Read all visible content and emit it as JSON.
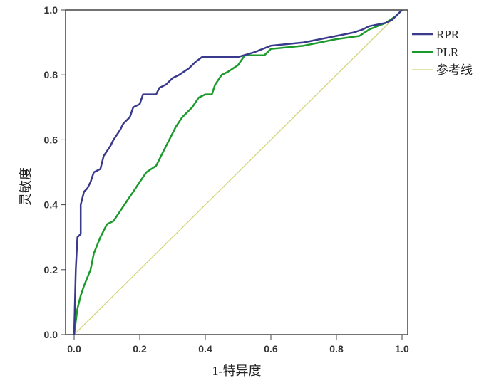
{
  "chart_data": {
    "type": "line",
    "xlabel": "1-特异度",
    "ylabel": "灵敏度",
    "xlim": [
      0,
      1
    ],
    "ylim": [
      0,
      1
    ],
    "xticks": [
      "0.0",
      "0.2",
      "0.4",
      "0.6",
      "0.8",
      "1.0"
    ],
    "yticks": [
      "0.0",
      "0.2",
      "0.4",
      "0.6",
      "0.8",
      "1.0"
    ],
    "grid": false,
    "legend_position": "right",
    "series": [
      {
        "name": "RPR",
        "color": "#3a3a8c",
        "points": [
          [
            0,
            0
          ],
          [
            0.005,
            0.2
          ],
          [
            0.01,
            0.3
          ],
          [
            0.02,
            0.31
          ],
          [
            0.02,
            0.4
          ],
          [
            0.03,
            0.44
          ],
          [
            0.04,
            0.45
          ],
          [
            0.05,
            0.47
          ],
          [
            0.06,
            0.5
          ],
          [
            0.08,
            0.51
          ],
          [
            0.09,
            0.55
          ],
          [
            0.11,
            0.58
          ],
          [
            0.12,
            0.6
          ],
          [
            0.14,
            0.63
          ],
          [
            0.15,
            0.65
          ],
          [
            0.17,
            0.67
          ],
          [
            0.18,
            0.7
          ],
          [
            0.2,
            0.71
          ],
          [
            0.21,
            0.74
          ],
          [
            0.25,
            0.74
          ],
          [
            0.26,
            0.76
          ],
          [
            0.28,
            0.77
          ],
          [
            0.3,
            0.79
          ],
          [
            0.32,
            0.8
          ],
          [
            0.35,
            0.82
          ],
          [
            0.37,
            0.84
          ],
          [
            0.39,
            0.855
          ],
          [
            0.5,
            0.855
          ],
          [
            0.55,
            0.87
          ],
          [
            0.6,
            0.89
          ],
          [
            0.7,
            0.9
          ],
          [
            0.8,
            0.92
          ],
          [
            0.85,
            0.93
          ],
          [
            0.88,
            0.94
          ],
          [
            0.9,
            0.95
          ],
          [
            0.95,
            0.96
          ],
          [
            0.97,
            0.97
          ],
          [
            0.99,
            0.99
          ],
          [
            1,
            1
          ]
        ]
      },
      {
        "name": "PLR",
        "color": "#1a9a2a",
        "points": [
          [
            0,
            0
          ],
          [
            0.01,
            0.08
          ],
          [
            0.02,
            0.12
          ],
          [
            0.03,
            0.15
          ],
          [
            0.05,
            0.2
          ],
          [
            0.06,
            0.25
          ],
          [
            0.08,
            0.3
          ],
          [
            0.1,
            0.34
          ],
          [
            0.12,
            0.35
          ],
          [
            0.14,
            0.38
          ],
          [
            0.16,
            0.41
          ],
          [
            0.18,
            0.44
          ],
          [
            0.2,
            0.47
          ],
          [
            0.22,
            0.5
          ],
          [
            0.25,
            0.52
          ],
          [
            0.27,
            0.56
          ],
          [
            0.29,
            0.6
          ],
          [
            0.31,
            0.64
          ],
          [
            0.33,
            0.67
          ],
          [
            0.36,
            0.7
          ],
          [
            0.38,
            0.73
          ],
          [
            0.4,
            0.74
          ],
          [
            0.42,
            0.74
          ],
          [
            0.43,
            0.77
          ],
          [
            0.45,
            0.8
          ],
          [
            0.47,
            0.81
          ],
          [
            0.5,
            0.83
          ],
          [
            0.52,
            0.86
          ],
          [
            0.58,
            0.86
          ],
          [
            0.6,
            0.88
          ],
          [
            0.7,
            0.89
          ],
          [
            0.8,
            0.91
          ],
          [
            0.87,
            0.92
          ],
          [
            0.9,
            0.94
          ],
          [
            0.95,
            0.96
          ],
          [
            0.98,
            0.98
          ],
          [
            1,
            1
          ]
        ]
      },
      {
        "name": "参考线",
        "color": "#d4d47a",
        "points": [
          [
            0,
            0
          ],
          [
            1,
            1
          ]
        ]
      }
    ]
  }
}
